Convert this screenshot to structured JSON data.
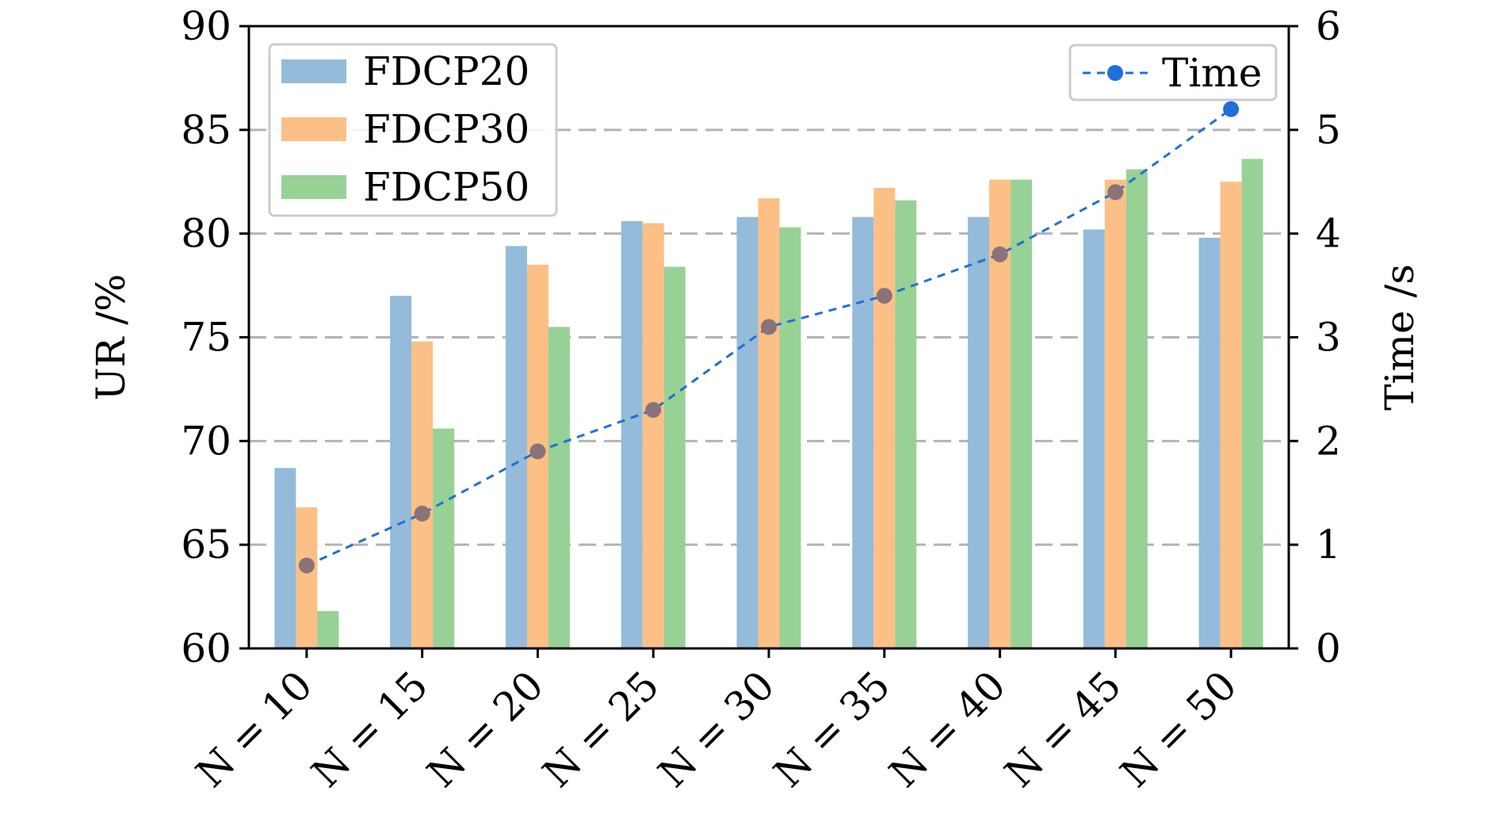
{
  "chart_data": {
    "type": "bar",
    "categories": [
      "N = 10",
      "N = 15",
      "N = 20",
      "N = 25",
      "N = 30",
      "N = 35",
      "N = 40",
      "N = 45",
      "N = 50"
    ],
    "series": [
      {
        "name": "FDCP20",
        "type": "bar",
        "axis": "left",
        "color": "#94bbd9",
        "values": [
          68.7,
          77.0,
          79.4,
          80.6,
          80.8,
          80.8,
          80.8,
          80.2,
          79.8
        ]
      },
      {
        "name": "FDCP30",
        "type": "bar",
        "axis": "left",
        "color": "#fcbf86",
        "values": [
          66.8,
          74.8,
          78.5,
          80.5,
          81.7,
          82.2,
          82.6,
          82.6,
          82.5
        ]
      },
      {
        "name": "FDCP50",
        "type": "bar",
        "axis": "left",
        "color": "#98d195",
        "values": [
          61.8,
          70.6,
          75.5,
          78.4,
          80.3,
          81.6,
          82.6,
          83.1,
          83.6
        ]
      },
      {
        "name": "Time",
        "type": "line",
        "axis": "right",
        "color": "#1f6fd8",
        "marker_color": "#8a7378",
        "last_marker_color": "#1f6fd8",
        "values": [
          0.8,
          1.3,
          1.9,
          2.3,
          3.1,
          3.4,
          3.8,
          4.4,
          5.2
        ]
      }
    ],
    "ylabel": "UR /%",
    "y2label": "Time /s",
    "xlabel": "",
    "ylim": [
      60,
      90
    ],
    "y2lim": [
      0,
      6
    ],
    "yticks": [
      60,
      65,
      70,
      75,
      80,
      85,
      90
    ],
    "y2ticks": [
      0,
      1,
      2,
      3,
      4,
      5,
      6
    ],
    "grid": "horizontal dashed",
    "legends": [
      {
        "placement": "top-left",
        "entries": [
          "FDCP20",
          "FDCP30",
          "FDCP50"
        ]
      },
      {
        "placement": "top-right",
        "entries": [
          "Time"
        ]
      }
    ]
  }
}
